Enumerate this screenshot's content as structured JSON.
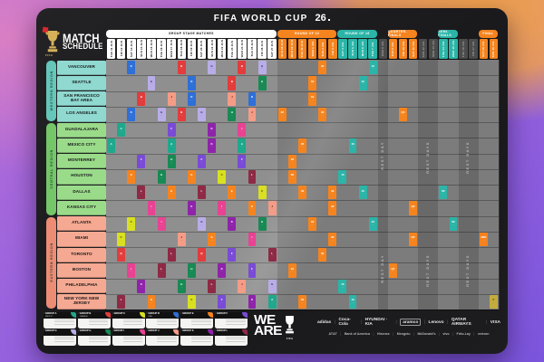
{
  "title": {
    "text": "FIFA WORLD CUP",
    "mark": "26"
  },
  "schedule_logo": {
    "line1": "MATCH",
    "line2": "SCHEDULE",
    "fifa": "FIFA"
  },
  "stage_bands": [
    {
      "label": "GROUP STAGE MATCHES",
      "c0": 0,
      "c1": 16,
      "bg": "#ffffff",
      "fg": "#141414"
    },
    {
      "label": "ROUND OF 32",
      "c0": 17,
      "c1": 22,
      "bg": "#F5841F",
      "fg": "#ffffff"
    },
    {
      "label": "ROUND OF 16",
      "c0": 23,
      "c1": 26,
      "bg": "#2BB5A8",
      "fg": "#ffffff"
    },
    {
      "label": "QUARTER-FINALS",
      "c0": 28,
      "c1": 30,
      "bg": "#F5841F",
      "fg": "#ffffff"
    },
    {
      "label": "SEMI-FINALS",
      "c0": 33,
      "c1": 34,
      "bg": "#2BB5A8",
      "fg": "#ffffff"
    },
    {
      "label": "FINAL",
      "c0": 37,
      "c1": 38,
      "bg": "#F5841F",
      "fg": "#ffffff"
    }
  ],
  "zone_styles": {
    "group": {
      "chip_bg": "#ffffff",
      "chip_fg": "#141414",
      "col_bg": "#8f8f8f"
    },
    "r32": {
      "chip_bg": "#F5841F",
      "chip_fg": "#ffffff",
      "col_bg": "#7c7c7c"
    },
    "r16": {
      "chip_bg": "#2BB5A8",
      "chip_fg": "#ffffff",
      "col_bg": "#7c7c7c"
    },
    "qf": {
      "chip_bg": "#F5841F",
      "chip_fg": "#ffffff",
      "col_bg": "#7c7c7c"
    },
    "sf": {
      "chip_bg": "#2BB5A8",
      "chip_fg": "#ffffff",
      "col_bg": "#7c7c7c"
    },
    "final": {
      "chip_bg": "#F5841F",
      "chip_fg": "#ffffff",
      "col_bg": "#7c7c7c"
    },
    "rest": {
      "chip_bg": "#4b4b4b",
      "chip_fg": "#a8a8a8",
      "col_bg": "#696969"
    }
  },
  "regions": [
    {
      "label": "WESTERN REGION",
      "r0": 0,
      "r1": 3,
      "bar": "#66C6BA",
      "label_bg": "#8FD9D0"
    },
    {
      "label": "CENTRAL REGION",
      "r0": 4,
      "r1": 9,
      "bar": "#74C668",
      "label_bg": "#9ADB8A"
    },
    {
      "label": "EASTERN REGION",
      "r0": 10,
      "r1": 15,
      "bar": "#EC8C74",
      "label_bg": "#F5A992"
    }
  ],
  "cities": [
    "VANCOUVER",
    "SEATTLE",
    "SAN FRANCISCO BAY AREA",
    "LOS ANGELES",
    "GUADALAJARA",
    "MEXICO CITY",
    "MONTERREY",
    "HOUSTON",
    "DALLAS",
    "KANSAS CITY",
    "ATLANTA",
    "MIAMI",
    "TORONTO",
    "BOSTON",
    "PHILADELPHIA",
    "NEW YORK NEW JERSEY"
  ],
  "group_colors": {
    "A": {
      "bg": "#1FA88C",
      "fg": "#ffffff"
    },
    "B": {
      "bg": "#E23C3C",
      "fg": "#ffffff"
    },
    "C": {
      "bg": "#D9E021",
      "fg": "#3a3a10"
    },
    "D": {
      "bg": "#2E6FD8",
      "fg": "#ffffff"
    },
    "E": {
      "bg": "#F5841F",
      "fg": "#ffffff"
    },
    "F": {
      "bg": "#7A4BD6",
      "fg": "#ffffff"
    },
    "G": {
      "bg": "#B9ADE8",
      "fg": "#322a55"
    },
    "H": {
      "bg": "#188A54",
      "fg": "#ffffff"
    },
    "I": {
      "bg": "#E84393",
      "fg": "#ffffff"
    },
    "J": {
      "bg": "#F49C86",
      "fg": "#5a2418"
    },
    "K": {
      "bg": "#8E24AA",
      "fg": "#ffffff"
    },
    "L": {
      "bg": "#8E2A45",
      "fg": "#ffffff"
    }
  },
  "knockout_colors": {
    "r32": {
      "bg": "#F5841F",
      "fg": "#ffffff",
      "label": "32"
    },
    "r16": {
      "bg": "#2BB5A8",
      "fg": "#ffffff",
      "label": "16"
    },
    "qf": {
      "bg": "#F5841F",
      "fg": "#ffffff",
      "label": "QF"
    },
    "sf": {
      "bg": "#2BB5A8",
      "fg": "#ffffff",
      "label": "SF"
    },
    "bronze": {
      "bg": "#F58220",
      "fg": "#ffffff",
      "label": "3RD"
    },
    "final": {
      "bg": "#C3AC3E",
      "fg": "#3a320a",
      "label": "F"
    }
  },
  "rest_zones": [
    {
      "c0": 27,
      "c1": 27,
      "label": "REST DAY"
    },
    {
      "c0": 31,
      "c1": 32,
      "label": "REST DAYS"
    },
    {
      "c0": 35,
      "c1": 36,
      "label": "REST DAYS"
    }
  ],
  "chart_data": {
    "type": "table",
    "title": "FIFA WORLD CUP 26 MATCH SCHEDULE",
    "rows_are": "host cities (16)",
    "columns_are": "match days 11 JUN - 19 JUL",
    "columns": [
      {
        "dow": "THU",
        "date": "11 JUN",
        "zone": "group"
      },
      {
        "dow": "FRI",
        "date": "12 JUN",
        "zone": "group"
      },
      {
        "dow": "SAT",
        "date": "13 JUN",
        "zone": "group"
      },
      {
        "dow": "SUN",
        "date": "14 JUN",
        "zone": "group"
      },
      {
        "dow": "MON",
        "date": "15 JUN",
        "zone": "group"
      },
      {
        "dow": "TUE",
        "date": "16 JUN",
        "zone": "group"
      },
      {
        "dow": "WED",
        "date": "17 JUN",
        "zone": "group"
      },
      {
        "dow": "THU",
        "date": "18 JUN",
        "zone": "group"
      },
      {
        "dow": "FRI",
        "date": "19 JUN",
        "zone": "group"
      },
      {
        "dow": "SAT",
        "date": "20 JUN",
        "zone": "group"
      },
      {
        "dow": "SUN",
        "date": "21 JUN",
        "zone": "group"
      },
      {
        "dow": "MON",
        "date": "22 JUN",
        "zone": "group"
      },
      {
        "dow": "TUE",
        "date": "23 JUN",
        "zone": "group"
      },
      {
        "dow": "WED",
        "date": "24 JUN",
        "zone": "group"
      },
      {
        "dow": "THU",
        "date": "25 JUN",
        "zone": "group"
      },
      {
        "dow": "FRI",
        "date": "26 JUN",
        "zone": "group"
      },
      {
        "dow": "SAT",
        "date": "27 JUN",
        "zone": "group"
      },
      {
        "dow": "SUN",
        "date": "28 JUN",
        "zone": "r32"
      },
      {
        "dow": "MON",
        "date": "29 JUN",
        "zone": "r32"
      },
      {
        "dow": "TUE",
        "date": "30 JUN",
        "zone": "r32"
      },
      {
        "dow": "WED",
        "date": "1 JUL",
        "zone": "r32"
      },
      {
        "dow": "THU",
        "date": "2 JUL",
        "zone": "r32"
      },
      {
        "dow": "FRI",
        "date": "3 JUL",
        "zone": "r32"
      },
      {
        "dow": "SAT",
        "date": "4 JUL",
        "zone": "r16"
      },
      {
        "dow": "SUN",
        "date": "5 JUL",
        "zone": "r16"
      },
      {
        "dow": "MON",
        "date": "6 JUL",
        "zone": "r16"
      },
      {
        "dow": "TUE",
        "date": "7 JUL",
        "zone": "r16"
      },
      {
        "dow": "WED",
        "date": "8 JUL",
        "zone": "rest"
      },
      {
        "dow": "THU",
        "date": "9 JUL",
        "zone": "qf"
      },
      {
        "dow": "FRI",
        "date": "10 JUL",
        "zone": "qf"
      },
      {
        "dow": "SAT",
        "date": "11 JUL",
        "zone": "qf"
      },
      {
        "dow": "SUN",
        "date": "12 JUL",
        "zone": "rest"
      },
      {
        "dow": "MON",
        "date": "13 JUL",
        "zone": "rest"
      },
      {
        "dow": "TUE",
        "date": "14 JUL",
        "zone": "sf"
      },
      {
        "dow": "WED",
        "date": "15 JUL",
        "zone": "sf"
      },
      {
        "dow": "THU",
        "date": "16 JUL",
        "zone": "rest"
      },
      {
        "dow": "FRI",
        "date": "17 JUL",
        "zone": "rest"
      },
      {
        "dow": "SAT",
        "date": "18 JUL",
        "zone": "final"
      },
      {
        "dow": "SUN",
        "date": "19 JUL",
        "zone": "final"
      }
    ],
    "cells": [
      {
        "r": 0,
        "c": 2,
        "g": "D"
      },
      {
        "r": 0,
        "c": 7,
        "g": "B"
      },
      {
        "r": 0,
        "c": 10,
        "g": "G"
      },
      {
        "r": 0,
        "c": 13,
        "g": "B"
      },
      {
        "r": 0,
        "c": 15,
        "g": "G"
      },
      {
        "r": 1,
        "c": 4,
        "g": "G"
      },
      {
        "r": 1,
        "c": 8,
        "g": "D"
      },
      {
        "r": 1,
        "c": 12,
        "g": "B"
      },
      {
        "r": 1,
        "c": 15,
        "g": "H"
      },
      {
        "r": 2,
        "c": 3,
        "g": "B"
      },
      {
        "r": 2,
        "c": 6,
        "g": "J"
      },
      {
        "r": 2,
        "c": 8,
        "g": "D"
      },
      {
        "r": 2,
        "c": 12,
        "g": "J"
      },
      {
        "r": 2,
        "c": 14,
        "g": "D"
      },
      {
        "r": 3,
        "c": 2,
        "g": "D"
      },
      {
        "r": 3,
        "c": 5,
        "g": "G"
      },
      {
        "r": 3,
        "c": 7,
        "g": "B"
      },
      {
        "r": 3,
        "c": 9,
        "g": "G"
      },
      {
        "r": 3,
        "c": 12,
        "g": "H"
      },
      {
        "r": 3,
        "c": 14,
        "g": "J"
      },
      {
        "r": 4,
        "c": 1,
        "g": "A"
      },
      {
        "r": 4,
        "c": 6,
        "g": "F"
      },
      {
        "r": 4,
        "c": 10,
        "g": "K"
      },
      {
        "r": 4,
        "c": 13,
        "g": "I"
      },
      {
        "r": 5,
        "c": 0,
        "g": "A"
      },
      {
        "r": 5,
        "c": 6,
        "g": "A"
      },
      {
        "r": 5,
        "c": 10,
        "g": "K"
      },
      {
        "r": 5,
        "c": 13,
        "g": "A"
      },
      {
        "r": 6,
        "c": 3,
        "g": "F"
      },
      {
        "r": 6,
        "c": 6,
        "g": "H"
      },
      {
        "r": 6,
        "c": 9,
        "g": "F"
      },
      {
        "r": 6,
        "c": 13,
        "g": "F"
      },
      {
        "r": 7,
        "c": 2,
        "g": "E"
      },
      {
        "r": 7,
        "c": 5,
        "g": "H"
      },
      {
        "r": 7,
        "c": 8,
        "g": "E"
      },
      {
        "r": 7,
        "c": 11,
        "g": "C"
      },
      {
        "r": 7,
        "c": 14,
        "g": "L"
      },
      {
        "r": 8,
        "c": 3,
        "g": "L"
      },
      {
        "r": 8,
        "c": 6,
        "g": "E"
      },
      {
        "r": 8,
        "c": 9,
        "g": "L"
      },
      {
        "r": 8,
        "c": 12,
        "g": "E"
      },
      {
        "r": 8,
        "c": 15,
        "g": "C"
      },
      {
        "r": 9,
        "c": 4,
        "g": "I"
      },
      {
        "r": 9,
        "c": 8,
        "g": "K"
      },
      {
        "r": 9,
        "c": 11,
        "g": "I"
      },
      {
        "r": 9,
        "c": 14,
        "g": "E"
      },
      {
        "r": 9,
        "c": 16,
        "g": "J"
      },
      {
        "r": 10,
        "c": 2,
        "g": "C"
      },
      {
        "r": 10,
        "c": 5,
        "g": "I"
      },
      {
        "r": 10,
        "c": 9,
        "g": "G"
      },
      {
        "r": 10,
        "c": 12,
        "g": "K"
      },
      {
        "r": 10,
        "c": 15,
        "g": "H"
      },
      {
        "r": 11,
        "c": 1,
        "g": "C"
      },
      {
        "r": 11,
        "c": 7,
        "g": "J"
      },
      {
        "r": 11,
        "c": 10,
        "g": "E"
      },
      {
        "r": 11,
        "c": 14,
        "g": "I"
      },
      {
        "r": 12,
        "c": 1,
        "g": "B"
      },
      {
        "r": 12,
        "c": 6,
        "g": "L"
      },
      {
        "r": 12,
        "c": 9,
        "g": "B"
      },
      {
        "r": 12,
        "c": 12,
        "g": "F"
      },
      {
        "r": 12,
        "c": 16,
        "g": "L"
      },
      {
        "r": 13,
        "c": 2,
        "g": "I"
      },
      {
        "r": 13,
        "c": 5,
        "g": "L"
      },
      {
        "r": 13,
        "c": 8,
        "g": "H"
      },
      {
        "r": 13,
        "c": 11,
        "g": "K"
      },
      {
        "r": 13,
        "c": 14,
        "g": "F"
      },
      {
        "r": 14,
        "c": 3,
        "g": "K"
      },
      {
        "r": 14,
        "c": 7,
        "g": "H"
      },
      {
        "r": 14,
        "c": 10,
        "g": "L"
      },
      {
        "r": 14,
        "c": 13,
        "g": "J"
      },
      {
        "r": 14,
        "c": 16,
        "g": "G"
      },
      {
        "r": 15,
        "c": 1,
        "g": "L"
      },
      {
        "r": 15,
        "c": 4,
        "g": "E"
      },
      {
        "r": 15,
        "c": 8,
        "g": "C"
      },
      {
        "r": 15,
        "c": 11,
        "g": "F"
      },
      {
        "r": 15,
        "c": 14,
        "g": "K"
      },
      {
        "r": 15,
        "c": 16,
        "g": "A"
      },
      {
        "r": 0,
        "c": 21,
        "k": "r32"
      },
      {
        "r": 1,
        "c": 20,
        "k": "r32"
      },
      {
        "r": 2,
        "c": 20,
        "k": "r32"
      },
      {
        "r": 3,
        "c": 17,
        "k": "r32"
      },
      {
        "r": 3,
        "c": 21,
        "k": "r32"
      },
      {
        "r": 5,
        "c": 19,
        "k": "r32"
      },
      {
        "r": 6,
        "c": 18,
        "k": "r32"
      },
      {
        "r": 7,
        "c": 18,
        "k": "r32"
      },
      {
        "r": 8,
        "c": 19,
        "k": "r32"
      },
      {
        "r": 8,
        "c": 22,
        "k": "r32"
      },
      {
        "r": 9,
        "c": 22,
        "k": "r32"
      },
      {
        "r": 10,
        "c": 20,
        "k": "r32"
      },
      {
        "r": 11,
        "c": 22,
        "k": "r32"
      },
      {
        "r": 12,
        "c": 21,
        "k": "r32"
      },
      {
        "r": 13,
        "c": 18,
        "k": "r32"
      },
      {
        "r": 15,
        "c": 19,
        "k": "r32"
      },
      {
        "r": 0,
        "c": 26,
        "k": "r16"
      },
      {
        "r": 1,
        "c": 25,
        "k": "r16"
      },
      {
        "r": 5,
        "c": 24,
        "k": "r16"
      },
      {
        "r": 7,
        "c": 23,
        "k": "r16"
      },
      {
        "r": 8,
        "c": 25,
        "k": "r16"
      },
      {
        "r": 10,
        "c": 26,
        "k": "r16"
      },
      {
        "r": 14,
        "c": 23,
        "k": "r16"
      },
      {
        "r": 15,
        "c": 24,
        "k": "r16"
      },
      {
        "r": 13,
        "c": 28,
        "k": "qf"
      },
      {
        "r": 3,
        "c": 29,
        "k": "qf"
      },
      {
        "r": 9,
        "c": 30,
        "k": "qf"
      },
      {
        "r": 11,
        "c": 30,
        "k": "qf"
      },
      {
        "r": 8,
        "c": 33,
        "k": "sf"
      },
      {
        "r": 10,
        "c": 34,
        "k": "sf"
      },
      {
        "r": 11,
        "c": 37,
        "k": "bronze"
      },
      {
        "r": 15,
        "c": 38,
        "k": "final"
      }
    ]
  },
  "legend": {
    "cards": [
      {
        "name": "GROUP A",
        "subtitle": "MEXICO",
        "color": "#1FA88C"
      },
      {
        "name": "GROUP B",
        "subtitle": "CANADA",
        "color": "#E23C3C"
      },
      {
        "name": "GROUP C",
        "subtitle": "",
        "color": "#D9E021"
      },
      {
        "name": "GROUP D",
        "subtitle": "USA",
        "color": "#2E6FD8"
      },
      {
        "name": "GROUP E",
        "subtitle": "",
        "color": "#F5841F"
      },
      {
        "name": "GROUP F",
        "subtitle": "",
        "color": "#7A4BD6"
      },
      {
        "name": "GROUP G",
        "subtitle": "",
        "color": "#B9ADE8"
      },
      {
        "name": "GROUP H",
        "subtitle": "",
        "color": "#188A54"
      },
      {
        "name": "GROUP I",
        "subtitle": "",
        "color": "#E84393"
      },
      {
        "name": "GROUP J",
        "subtitle": "",
        "color": "#F49C86"
      },
      {
        "name": "GROUP K",
        "subtitle": "",
        "color": "#8E24AA"
      },
      {
        "name": "GROUP L",
        "subtitle": "",
        "color": "#8E2A45"
      }
    ]
  },
  "footer": {
    "weare_top": "WE",
    "weare_bottom": "ARE",
    "fifa": "FIFA",
    "sponsors_row1": [
      "adidas",
      "Coca-Cola",
      "HYUNDAI · KIA",
      "aramco",
      "Lenovo",
      "QATAR AIRWAYS",
      "VISA"
    ],
    "sponsors_row2": [
      "AT&T",
      "Bank of America",
      "Hisense",
      "Mengniu",
      "McDonald's",
      "vivo",
      "Frito-Lay",
      "verizon"
    ]
  }
}
